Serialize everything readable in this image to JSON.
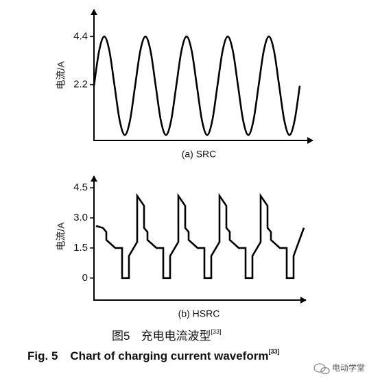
{
  "chart_data": [
    {
      "type": "line",
      "title": "(a)  SRC",
      "y_label": "电流/A",
      "smooth": true,
      "color": "#000000",
      "xlim": [
        0,
        318
      ],
      "ylim": [
        -0.35,
        5.6
      ],
      "yticks": [
        4.4,
        2.2
      ],
      "x": [
        0,
        7.5,
        15,
        22.5,
        30,
        37.5,
        45,
        52.5,
        60,
        67.5,
        75,
        82.5,
        90,
        97.5,
        105,
        112.5,
        120,
        127.5,
        135,
        142.5,
        150,
        157.5,
        165,
        172.5,
        180,
        187.5,
        195,
        202.5,
        210,
        217.5,
        225,
        232.5,
        240,
        247.5,
        255,
        262.5,
        270,
        277.5,
        285,
        292.5,
        300
      ],
      "values": [
        2.15,
        3.74,
        4.4,
        3.74,
        2.15,
        0.56,
        -0.1,
        0.56,
        2.15,
        3.74,
        4.4,
        3.74,
        2.15,
        0.56,
        -0.1,
        0.56,
        2.15,
        3.74,
        4.4,
        3.74,
        2.15,
        0.56,
        -0.1,
        0.56,
        2.15,
        3.74,
        4.4,
        3.74,
        2.15,
        0.56,
        -0.1,
        0.56,
        2.15,
        3.74,
        4.4,
        3.74,
        2.15,
        0.56,
        -0.1,
        0.56,
        2.15
      ]
    },
    {
      "type": "line",
      "title": "(b)  HSRC",
      "y_label": "电流/A",
      "smooth": false,
      "color": "#000000",
      "xlim": [
        0,
        308
      ],
      "ylim": [
        -1.1,
        5.05
      ],
      "yticks": [
        4.5,
        {
          "value": 3,
          "label": "3.0"
        },
        1.5,
        0
      ],
      "x": [
        3,
        13,
        18,
        18,
        31,
        41,
        41,
        51,
        51,
        63,
        63,
        73,
        73,
        78,
        78,
        91,
        101,
        101,
        111,
        111,
        123,
        123,
        133,
        133,
        138,
        138,
        151,
        161,
        161,
        171,
        171,
        183,
        183,
        193,
        193,
        198,
        198,
        211,
        221,
        221,
        231,
        231,
        243,
        243,
        253,
        253,
        258,
        258,
        271,
        281,
        281,
        291,
        291,
        306
      ],
      "values": [
        2.6,
        2.5,
        2.3,
        1.9,
        1.5,
        1.5,
        0,
        0,
        1.1,
        1.8,
        4.1,
        3.6,
        2.5,
        2.3,
        1.9,
        1.5,
        1.5,
        0,
        0,
        1.1,
        1.8,
        4.1,
        3.6,
        2.5,
        2.3,
        1.9,
        1.5,
        1.5,
        0,
        0,
        1.1,
        1.8,
        4.1,
        3.6,
        2.5,
        2.3,
        1.9,
        1.5,
        1.5,
        0,
        0,
        1.1,
        1.8,
        4.1,
        3.6,
        2.5,
        2.3,
        1.9,
        1.5,
        1.5,
        0,
        0,
        1.1,
        2.5
      ]
    }
  ],
  "caption": {
    "cn_label": "图5",
    "cn_text": "充电电流波型",
    "cn_ref": "[33]",
    "en_label": "Fig. 5",
    "en_text": "Chart of charging current waveform",
    "en_ref": "[33]"
  },
  "watermark": "电动学堂"
}
